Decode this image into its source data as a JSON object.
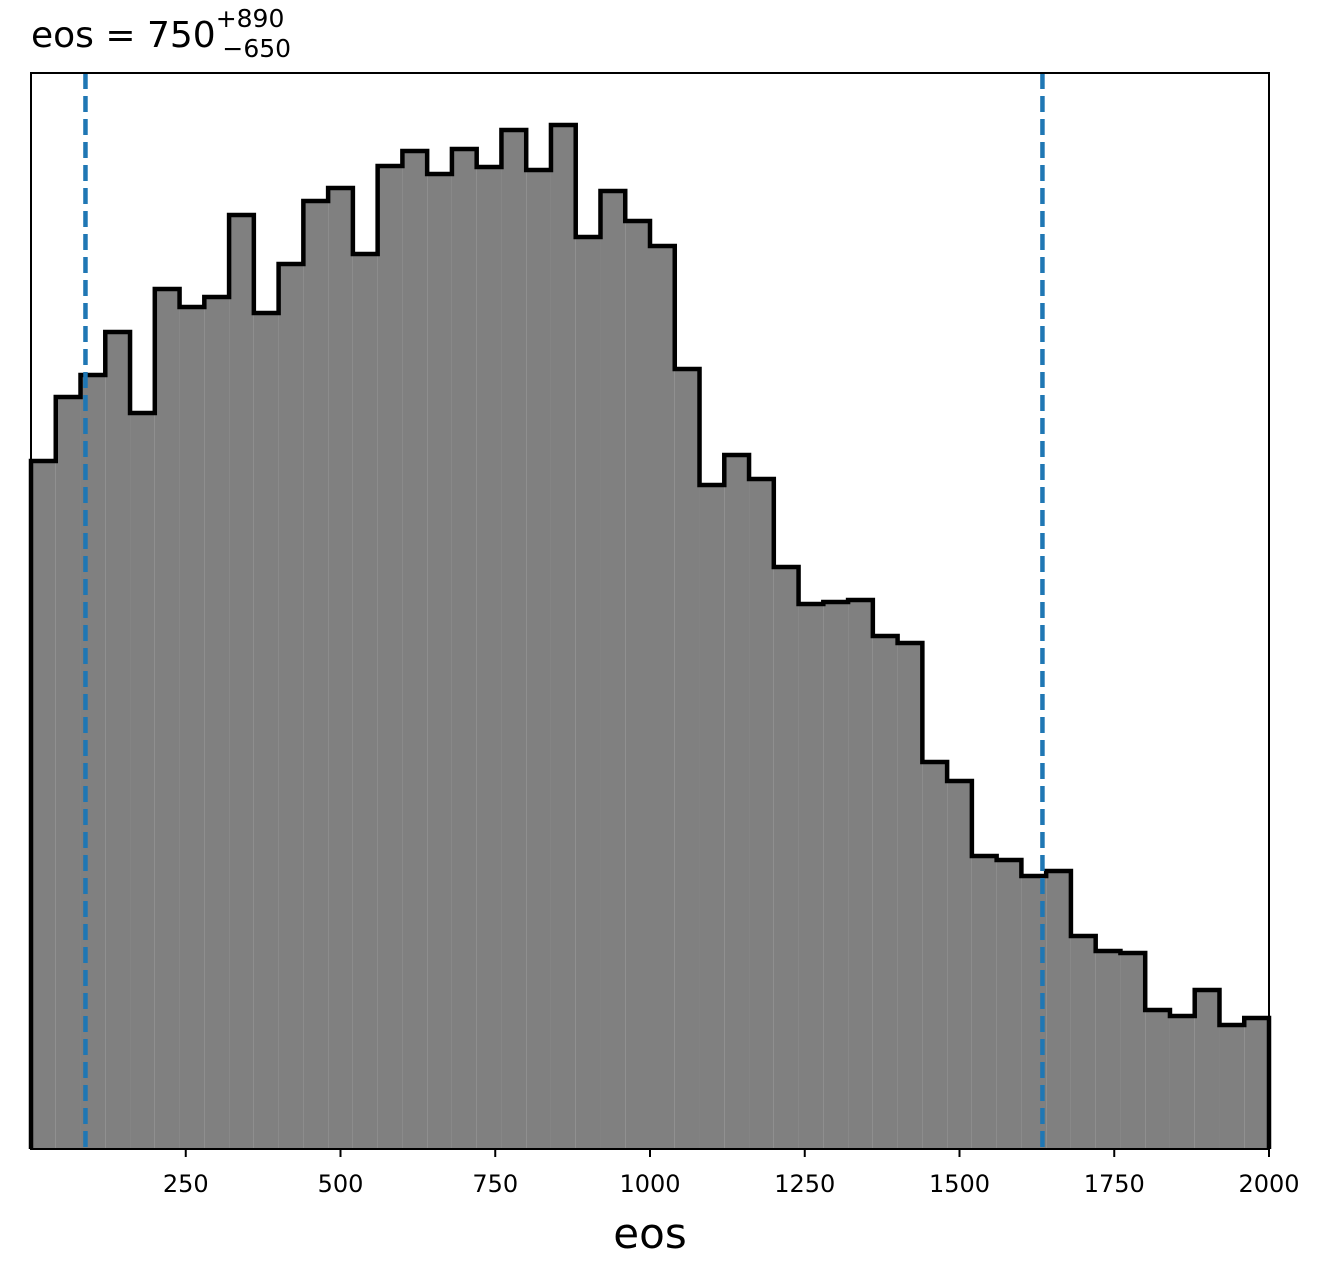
{
  "chart_data": {
    "type": "histogram",
    "title": {
      "text": "eos = 750",
      "sup": "+890",
      "sub": "−650"
    },
    "xlabel": "eos",
    "bins": [
      0,
      40,
      80,
      120,
      160,
      200,
      240,
      280,
      320,
      360,
      400,
      440,
      480,
      520,
      560,
      600,
      640,
      680,
      720,
      760,
      800,
      840,
      880,
      920,
      960,
      1000,
      1040,
      1080,
      1120,
      1160,
      1200,
      1240,
      1280,
      1320,
      1360,
      1400,
      1440,
      1480,
      1520,
      1560,
      1600,
      1640,
      1680,
      1720,
      1760,
      1800,
      1840,
      1880,
      1920,
      1960,
      2000
    ],
    "counts": [
      688,
      752,
      774,
      817,
      736,
      860,
      842,
      852,
      934,
      836,
      885,
      948,
      961,
      895,
      983,
      998,
      975,
      1000,
      982,
      1019,
      979,
      1024,
      912,
      958,
      928,
      903,
      780,
      664,
      694,
      670,
      582,
      545,
      547,
      549,
      513,
      506,
      387,
      368,
      293,
      289,
      273,
      278,
      213,
      198,
      196,
      139,
      133,
      159,
      124,
      131
    ],
    "color": "#808080",
    "edgecolor": "#000000",
    "xlim": [
      0,
      2000
    ],
    "ylim": [
      0,
      1076
    ],
    "xticks": [
      250,
      500,
      750,
      1000,
      1250,
      1500,
      1750,
      2000
    ],
    "vlines": [
      88,
      1634
    ],
    "vline_color": "#1f77b4"
  }
}
